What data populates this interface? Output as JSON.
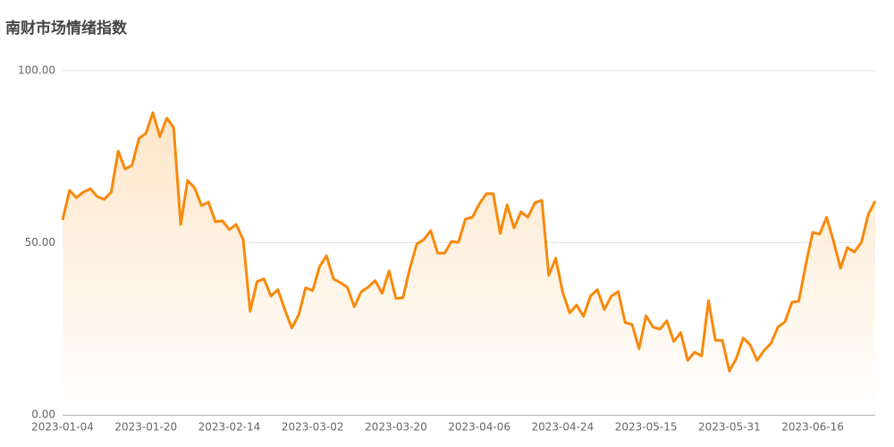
{
  "chart_data": {
    "type": "line",
    "title": "南财市场情绪指数",
    "categories": [
      "2023-01-04",
      null,
      null,
      null,
      null,
      null,
      null,
      null,
      null,
      null,
      null,
      null,
      "2023-01-20",
      null,
      null,
      null,
      null,
      null,
      null,
      null,
      null,
      null,
      null,
      null,
      "2023-02-14",
      null,
      null,
      null,
      null,
      null,
      null,
      null,
      null,
      null,
      null,
      null,
      "2023-03-02",
      null,
      null,
      null,
      null,
      null,
      null,
      null,
      null,
      null,
      null,
      null,
      "2023-03-20",
      null,
      null,
      null,
      null,
      null,
      null,
      null,
      null,
      null,
      null,
      null,
      "2023-04-06",
      null,
      null,
      null,
      null,
      null,
      null,
      null,
      null,
      null,
      null,
      null,
      "2023-04-24",
      null,
      null,
      null,
      null,
      null,
      null,
      null,
      null,
      null,
      null,
      null,
      "2023-05-15",
      null,
      null,
      null,
      null,
      null,
      null,
      null,
      null,
      null,
      null,
      null,
      "2023-05-31",
      null,
      null,
      null,
      null,
      null,
      null,
      null,
      null,
      null,
      null,
      null,
      "2023-06-16",
      null,
      null,
      null,
      null,
      null,
      null,
      null,
      null,
      null
    ],
    "series": [
      {
        "color": "#f7890c",
        "values": [
          56.6,
          65.2,
          63.1,
          64.7,
          65.7,
          63.4,
          62.6,
          64.7,
          76.6,
          71.4,
          72.5,
          80.3,
          81.8,
          87.8,
          80.8,
          86.2,
          83.4,
          55.3,
          68.1,
          66.0,
          60.8,
          61.8,
          56.1,
          56.4,
          53.8,
          55.3,
          50.9,
          30.1,
          38.7,
          39.5,
          34.5,
          36.4,
          30.6,
          25.2,
          29.1,
          36.9,
          36.1,
          43.1,
          46.2,
          39.5,
          38.4,
          37.1,
          31.4,
          35.8,
          37.1,
          39.0,
          35.3,
          41.8,
          33.8,
          34.0,
          42.6,
          49.6,
          50.9,
          53.5,
          47.0,
          47.0,
          50.4,
          50.1,
          56.9,
          57.4,
          61.3,
          64.2,
          64.2,
          52.7,
          61.0,
          54.3,
          59.0,
          57.4,
          61.6,
          62.3,
          40.5,
          45.5,
          35.6,
          29.6,
          31.9,
          28.6,
          34.5,
          36.4,
          30.6,
          34.5,
          35.8,
          26.8,
          26.2,
          19.2,
          28.8,
          25.5,
          24.9,
          27.3,
          21.3,
          23.9,
          15.8,
          18.2,
          17.1,
          33.2,
          21.6,
          21.6,
          12.7,
          16.4,
          22.3,
          20.3,
          15.8,
          18.7,
          20.8,
          25.5,
          27.0,
          32.7,
          33.0,
          43.6,
          53.0,
          52.5,
          57.4,
          50.4,
          42.6,
          48.6,
          47.3,
          50.1,
          58.2,
          62.1
        ]
      }
    ],
    "ylim": [
      0,
      100
    ],
    "yticks": [
      {
        "value": 0,
        "label": "0.00"
      },
      {
        "value": 50,
        "label": "50.00"
      },
      {
        "value": 100,
        "label": "100.00"
      }
    ],
    "grid": true
  }
}
